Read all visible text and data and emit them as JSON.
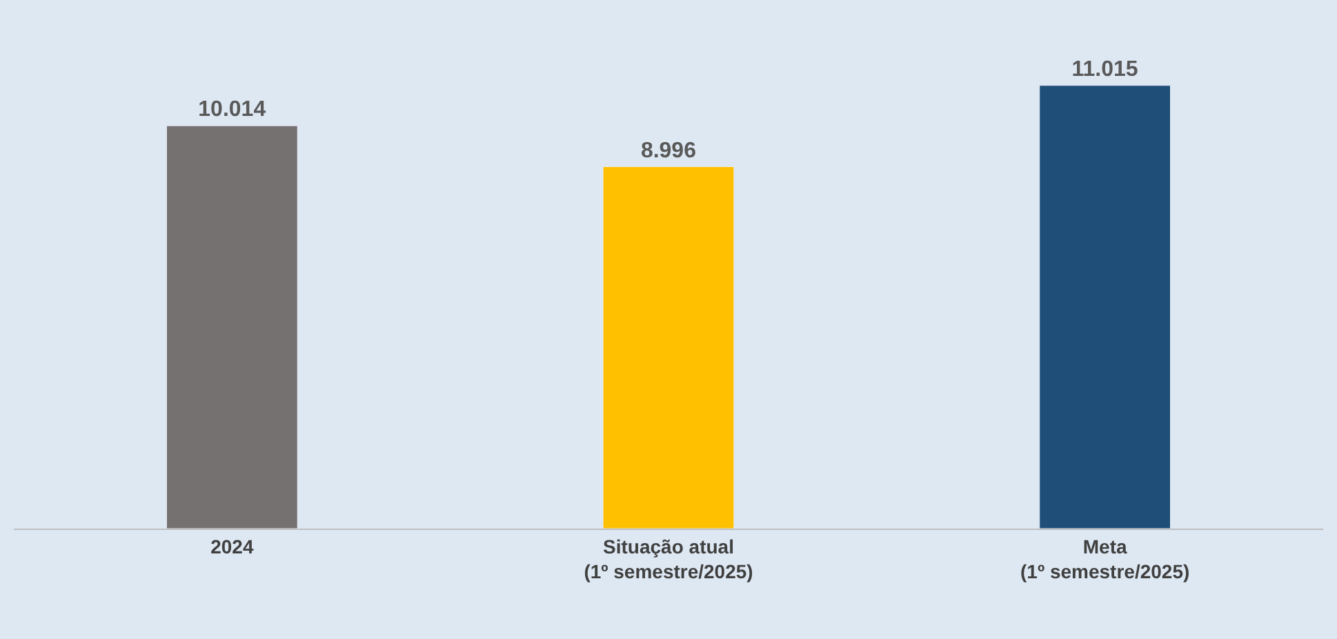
{
  "chart_data": {
    "type": "bar",
    "categories": [
      "2024",
      "Situação atual\n(1º semestre/2025)",
      "Meta\n(1º semestre/2025)"
    ],
    "values": [
      10014,
      8996,
      11015
    ],
    "value_labels": [
      "10.014",
      "8.996",
      "11.015"
    ],
    "colors": [
      "#767171",
      "#ffc000",
      "#1f4e79"
    ],
    "legend": false
  }
}
